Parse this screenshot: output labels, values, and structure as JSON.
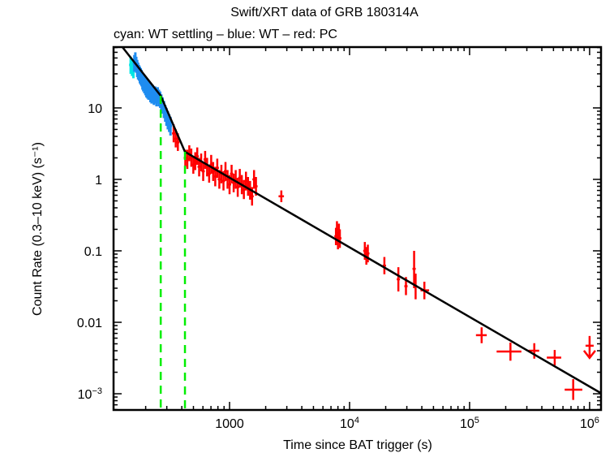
{
  "chart_data": {
    "type": "scatter",
    "title": "Swift/XRT data of GRB 180314A",
    "subtitle": "cyan: WT settling – blue: WT – red: PC",
    "xlabel": "Time since BAT trigger (s)",
    "ylabel": "Count Rate (0.3–10 keV) (s⁻¹)",
    "xscale": "log",
    "yscale": "log",
    "xlim": [
      108,
      1245000
    ],
    "ylim": [
      0.000593,
      71
    ],
    "xticks": [
      {
        "value": 1000,
        "label": "1000",
        "sup": ""
      },
      {
        "value": 10000,
        "label": "10",
        "sup": "4"
      },
      {
        "value": 100000,
        "label": "10",
        "sup": "5"
      },
      {
        "value": 1000000,
        "label": "10",
        "sup": "6"
      }
    ],
    "yticks": [
      {
        "value": 10,
        "label": "10",
        "sup": ""
      },
      {
        "value": 1,
        "label": "1",
        "sup": ""
      },
      {
        "value": 0.1,
        "label": "0.1",
        "sup": ""
      },
      {
        "value": 0.01,
        "label": "0.01",
        "sup": ""
      },
      {
        "value": 0.001,
        "label": "10",
        "sup": "−3"
      }
    ],
    "colors": {
      "wt_settling": "#00e5e5",
      "wt": "#1e8cf0",
      "pc": "#ff0000",
      "fit": "#000000",
      "breaks": "#00ee00"
    },
    "series": [
      {
        "name": "WT settling",
        "color_key": "wt_settling",
        "points": [
          {
            "t": 150,
            "r": 40,
            "rlo": 30,
            "rhi": 52
          },
          {
            "t": 154,
            "r": 38,
            "rlo": 28,
            "rhi": 48
          },
          {
            "t": 158,
            "r": 36,
            "rlo": 26,
            "rhi": 46
          }
        ]
      },
      {
        "name": "WT",
        "color_key": "wt",
        "points": [
          {
            "t": 161,
            "r": 42,
            "rlo": 32,
            "rhi": 55
          },
          {
            "t": 164,
            "r": 44,
            "rlo": 34,
            "rhi": 60
          },
          {
            "t": 167,
            "r": 40,
            "rlo": 31,
            "rhi": 52
          },
          {
            "t": 170,
            "r": 36,
            "rlo": 27,
            "rhi": 47
          },
          {
            "t": 173,
            "r": 33,
            "rlo": 25,
            "rhi": 43
          },
          {
            "t": 176,
            "r": 31,
            "rlo": 24,
            "rhi": 40
          },
          {
            "t": 179,
            "r": 29,
            "rlo": 22,
            "rhi": 38
          },
          {
            "t": 182,
            "r": 28,
            "rlo": 21,
            "rhi": 36
          },
          {
            "t": 185,
            "r": 26,
            "rlo": 20,
            "rhi": 34
          },
          {
            "t": 188,
            "r": 24,
            "rlo": 18,
            "rhi": 31
          },
          {
            "t": 191,
            "r": 22,
            "rlo": 17,
            "rhi": 29
          },
          {
            "t": 195,
            "r": 21,
            "rlo": 16,
            "rhi": 28
          },
          {
            "t": 199,
            "r": 20,
            "rlo": 15,
            "rhi": 26
          },
          {
            "t": 203,
            "r": 19,
            "rlo": 14,
            "rhi": 25
          },
          {
            "t": 207,
            "r": 18,
            "rlo": 13.5,
            "rhi": 24
          },
          {
            "t": 211,
            "r": 17,
            "rlo": 13,
            "rhi": 22
          },
          {
            "t": 215,
            "r": 17.5,
            "rlo": 13,
            "rhi": 23
          },
          {
            "t": 219,
            "r": 16,
            "rlo": 12,
            "rhi": 21
          },
          {
            "t": 224,
            "r": 15,
            "rlo": 11.5,
            "rhi": 20
          },
          {
            "t": 229,
            "r": 15.5,
            "rlo": 12,
            "rhi": 21
          },
          {
            "t": 234,
            "r": 14.5,
            "rlo": 11,
            "rhi": 19
          },
          {
            "t": 240,
            "r": 15,
            "rlo": 11.5,
            "rhi": 20
          },
          {
            "t": 246,
            "r": 14,
            "rlo": 10.5,
            "rhi": 18.5
          },
          {
            "t": 252,
            "r": 15,
            "rlo": 11.5,
            "rhi": 19.5
          },
          {
            "t": 258,
            "r": 14,
            "rlo": 10.5,
            "rhi": 18
          },
          {
            "t": 264,
            "r": 13,
            "rlo": 10,
            "rhi": 17
          },
          {
            "t": 270,
            "r": 12,
            "rlo": 9,
            "rhi": 15.5
          },
          {
            "t": 277,
            "r": 11,
            "rlo": 8.3,
            "rhi": 14
          },
          {
            "t": 284,
            "r": 9.5,
            "rlo": 7.2,
            "rhi": 12.5
          },
          {
            "t": 291,
            "r": 8.5,
            "rlo": 6.4,
            "rhi": 11
          },
          {
            "t": 298,
            "r": 7.5,
            "rlo": 5.6,
            "rhi": 10
          },
          {
            "t": 306,
            "r": 6.8,
            "rlo": 5,
            "rhi": 9
          },
          {
            "t": 314,
            "r": 6.2,
            "rlo": 4.6,
            "rhi": 8.2
          },
          {
            "t": 322,
            "r": 5.6,
            "rlo": 4.1,
            "rhi": 7.5
          }
        ]
      },
      {
        "name": "PC",
        "color_key": "pc",
        "points": [
          {
            "t": 342,
            "r": 4.4,
            "rlo": 3.3,
            "rhi": 5.9,
            "tlo": 336,
            "thi": 348
          },
          {
            "t": 356,
            "r": 3.7,
            "rlo": 2.8,
            "rhi": 5.0,
            "tlo": 350,
            "thi": 362
          },
          {
            "t": 371,
            "r": 3.3,
            "rlo": 2.5,
            "rhi": 4.4,
            "tlo": 364,
            "thi": 378
          },
          {
            "t": 428,
            "r": 2.0,
            "rlo": 1.5,
            "rhi": 2.6,
            "tlo": 420,
            "thi": 436
          },
          {
            "t": 445,
            "r": 1.9,
            "rlo": 1.4,
            "rhi": 2.6,
            "tlo": 437,
            "thi": 453
          },
          {
            "t": 462,
            "r": 2.3,
            "rlo": 1.8,
            "rhi": 3.0,
            "tlo": 454,
            "thi": 470
          },
          {
            "t": 480,
            "r": 2.0,
            "rlo": 1.5,
            "rhi": 2.7,
            "tlo": 471,
            "thi": 489
          },
          {
            "t": 499,
            "r": 1.6,
            "rlo": 1.2,
            "rhi": 2.1,
            "tlo": 490,
            "thi": 508
          },
          {
            "t": 518,
            "r": 1.8,
            "rlo": 1.35,
            "rhi": 2.4,
            "tlo": 509,
            "thi": 527
          },
          {
            "t": 538,
            "r": 2.1,
            "rlo": 1.6,
            "rhi": 2.8,
            "tlo": 528,
            "thi": 548
          },
          {
            "t": 558,
            "r": 1.5,
            "rlo": 1.1,
            "rhi": 2.0,
            "tlo": 549,
            "thi": 568
          },
          {
            "t": 580,
            "r": 1.7,
            "rlo": 1.3,
            "rhi": 2.3,
            "tlo": 569,
            "thi": 591
          },
          {
            "t": 603,
            "r": 1.3,
            "rlo": 0.95,
            "rhi": 1.75,
            "tlo": 592,
            "thi": 614
          },
          {
            "t": 626,
            "r": 1.9,
            "rlo": 1.4,
            "rhi": 2.5,
            "tlo": 615,
            "thi": 638
          },
          {
            "t": 650,
            "r": 1.5,
            "rlo": 1.1,
            "rhi": 2.0,
            "tlo": 639,
            "thi": 662
          },
          {
            "t": 676,
            "r": 1.2,
            "rlo": 0.9,
            "rhi": 1.6,
            "tlo": 663,
            "thi": 689
          },
          {
            "t": 703,
            "r": 1.6,
            "rlo": 1.2,
            "rhi": 2.2,
            "tlo": 690,
            "thi": 716
          },
          {
            "t": 730,
            "r": 1.3,
            "rlo": 0.95,
            "rhi": 1.75,
            "tlo": 717,
            "thi": 744
          },
          {
            "t": 760,
            "r": 1.1,
            "rlo": 0.8,
            "rhi": 1.5,
            "tlo": 745,
            "thi": 775
          },
          {
            "t": 790,
            "r": 1.45,
            "rlo": 1.05,
            "rhi": 1.95,
            "tlo": 776,
            "thi": 805
          },
          {
            "t": 822,
            "r": 1.0,
            "rlo": 0.74,
            "rhi": 1.35,
            "tlo": 806,
            "thi": 838
          },
          {
            "t": 855,
            "r": 1.2,
            "rlo": 0.88,
            "rhi": 1.6,
            "tlo": 839,
            "thi": 871
          },
          {
            "t": 890,
            "r": 0.95,
            "rlo": 0.7,
            "rhi": 1.3,
            "tlo": 872,
            "thi": 908
          },
          {
            "t": 925,
            "r": 1.3,
            "rlo": 0.95,
            "rhi": 1.75,
            "tlo": 909,
            "thi": 942
          },
          {
            "t": 962,
            "r": 1.0,
            "rlo": 0.74,
            "rhi": 1.35,
            "tlo": 943,
            "thi": 981
          },
          {
            "t": 1000,
            "r": 0.85,
            "rlo": 0.62,
            "rhi": 1.15,
            "tlo": 982,
            "thi": 1019
          },
          {
            "t": 1040,
            "r": 1.2,
            "rlo": 0.88,
            "rhi": 1.6,
            "tlo": 1020,
            "thi": 1060
          },
          {
            "t": 1082,
            "r": 0.9,
            "rlo": 0.66,
            "rhi": 1.2,
            "tlo": 1061,
            "thi": 1103
          },
          {
            "t": 1125,
            "r": 1.0,
            "rlo": 0.74,
            "rhi": 1.35,
            "tlo": 1104,
            "thi": 1147
          },
          {
            "t": 1170,
            "r": 0.78,
            "rlo": 0.57,
            "rhi": 1.05,
            "tlo": 1148,
            "thi": 1192
          },
          {
            "t": 1217,
            "r": 1.05,
            "rlo": 0.77,
            "rhi": 1.4,
            "tlo": 1193,
            "thi": 1241
          },
          {
            "t": 1265,
            "r": 0.85,
            "rlo": 0.62,
            "rhi": 1.15,
            "tlo": 1242,
            "thi": 1289
          },
          {
            "t": 1316,
            "r": 0.72,
            "rlo": 0.53,
            "rhi": 0.98,
            "tlo": 1290,
            "thi": 1342
          },
          {
            "t": 1370,
            "r": 0.95,
            "rlo": 0.7,
            "rhi": 1.28,
            "tlo": 1343,
            "thi": 1397
          },
          {
            "t": 1425,
            "r": 0.8,
            "rlo": 0.59,
            "rhi": 1.08,
            "tlo": 1398,
            "thi": 1452
          },
          {
            "t": 1482,
            "r": 0.7,
            "rlo": 0.52,
            "rhi": 0.95,
            "tlo": 1453,
            "thi": 1511
          },
          {
            "t": 1540,
            "r": 0.58,
            "rlo": 0.43,
            "rhi": 0.78,
            "tlo": 1512,
            "thi": 1568
          },
          {
            "t": 1600,
            "r": 1.0,
            "rlo": 0.74,
            "rhi": 1.35,
            "tlo": 1569,
            "thi": 1631
          },
          {
            "t": 1660,
            "r": 0.8,
            "rlo": 0.59,
            "rhi": 1.08,
            "tlo": 1632,
            "thi": 1690
          },
          {
            "t": 2700,
            "r": 0.58,
            "rlo": 0.48,
            "rhi": 0.7,
            "tlo": 2560,
            "thi": 2840
          },
          {
            "t": 7700,
            "r": 0.16,
            "rlo": 0.12,
            "rhi": 0.21,
            "tlo": 7600,
            "thi": 7800
          },
          {
            "t": 7850,
            "r": 0.2,
            "rlo": 0.15,
            "rhi": 0.26,
            "tlo": 7780,
            "thi": 7920
          },
          {
            "t": 8000,
            "r": 0.14,
            "rlo": 0.105,
            "rhi": 0.185,
            "tlo": 7930,
            "thi": 8070
          },
          {
            "t": 8150,
            "r": 0.18,
            "rlo": 0.135,
            "rhi": 0.24,
            "tlo": 8080,
            "thi": 8220
          },
          {
            "t": 8300,
            "r": 0.15,
            "rlo": 0.11,
            "rhi": 0.2,
            "tlo": 8230,
            "thi": 8370
          },
          {
            "t": 13400,
            "r": 0.1,
            "rlo": 0.075,
            "rhi": 0.133,
            "tlo": 13200,
            "thi": 13600
          },
          {
            "t": 13800,
            "r": 0.085,
            "rlo": 0.064,
            "rhi": 0.113,
            "tlo": 13600,
            "thi": 14000
          },
          {
            "t": 14200,
            "r": 0.092,
            "rlo": 0.069,
            "rhi": 0.122,
            "tlo": 14000,
            "thi": 14400
          },
          {
            "t": 19500,
            "r": 0.062,
            "rlo": 0.047,
            "rhi": 0.082,
            "tlo": 19100,
            "thi": 19900
          },
          {
            "t": 25500,
            "r": 0.04,
            "rlo": 0.027,
            "rhi": 0.059,
            "tlo": 25000,
            "thi": 26000
          },
          {
            "t": 29500,
            "r": 0.032,
            "rlo": 0.024,
            "rhi": 0.043,
            "tlo": 29000,
            "thi": 30000
          },
          {
            "t": 34500,
            "r": 0.056,
            "rlo": 0.03,
            "rhi": 0.1,
            "tlo": 34000,
            "thi": 35000
          },
          {
            "t": 35500,
            "r": 0.032,
            "rlo": 0.021,
            "rhi": 0.048,
            "tlo": 35000,
            "thi": 36000
          },
          {
            "t": 42000,
            "r": 0.028,
            "rlo": 0.021,
            "rhi": 0.037,
            "tlo": 39000,
            "thi": 46000
          },
          {
            "t": 126000,
            "r": 0.0066,
            "rlo": 0.0051,
            "rhi": 0.0085,
            "tlo": 113000,
            "thi": 139000
          },
          {
            "t": 219000,
            "r": 0.0039,
            "rlo": 0.0029,
            "rhi": 0.0052,
            "tlo": 168000,
            "thi": 270000
          },
          {
            "t": 346000,
            "r": 0.004,
            "rlo": 0.0031,
            "rhi": 0.0051,
            "tlo": 310000,
            "thi": 380000
          },
          {
            "t": 512000,
            "r": 0.0032,
            "rlo": 0.0025,
            "rhi": 0.0041,
            "tlo": 440000,
            "thi": 580000
          },
          {
            "t": 730000,
            "r": 0.00114,
            "rlo": 0.00082,
            "rhi": 0.0016,
            "tlo": 620000,
            "thi": 870000
          }
        ],
        "upper_limits": [
          {
            "t": 1000000,
            "r": 0.0047
          }
        ]
      }
    ],
    "fit": {
      "name": "Broken power-law fit",
      "points": [
        {
          "t": 128,
          "r": 71
        },
        {
          "t": 267,
          "r": 14.8
        },
        {
          "t": 425,
          "r": 2.43
        },
        {
          "t": 1230000,
          "r": 0.00103
        }
      ]
    },
    "breaks": [
      {
        "t": 267,
        "r": 14.8
      },
      {
        "t": 425,
        "r": 2.43
      }
    ]
  }
}
